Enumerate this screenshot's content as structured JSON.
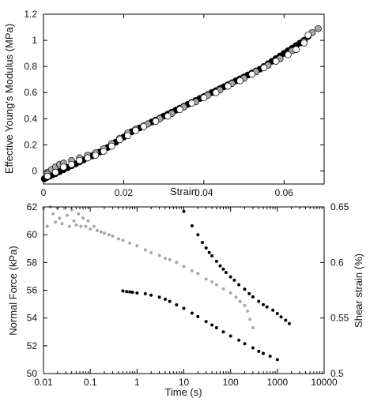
{
  "chart_data": [
    {
      "type": "scatter",
      "xlabel": "Strain",
      "ylabel": "Effective Young's Modulus (MPa)",
      "xlim": [
        0,
        0.07
      ],
      "ylim": [
        -0.1,
        1.2
      ],
      "xticks": [
        0,
        0.02,
        0.04,
        0.06
      ],
      "xtick_labels": [
        "0",
        "0.02",
        "0.04",
        "0.06"
      ],
      "yticks": [
        0,
        0.2,
        0.4,
        0.6,
        0.8,
        1,
        1.2
      ],
      "ytick_labels": [
        "0",
        "0.2",
        "0.4",
        "0.6",
        "0.8",
        "1",
        "1.2"
      ],
      "grid": false,
      "series": [
        {
          "color": "#000000",
          "marker": "filled-circle",
          "points": [
            [
              0.0002,
              -0.06
            ],
            [
              0.0008,
              -0.05
            ],
            [
              0.0015,
              -0.04
            ],
            [
              0.0022,
              -0.03
            ],
            [
              0.003,
              -0.02
            ],
            [
              0.004,
              -0.005
            ],
            [
              0.005,
              0.01
            ],
            [
              0.006,
              0.025
            ],
            [
              0.007,
              0.04
            ],
            [
              0.008,
              0.055
            ],
            [
              0.009,
              0.07
            ],
            [
              0.01,
              0.085
            ],
            [
              0.011,
              0.1
            ],
            [
              0.012,
              0.115
            ],
            [
              0.013,
              0.13
            ],
            [
              0.014,
              0.145
            ],
            [
              0.015,
              0.16
            ],
            [
              0.016,
              0.18
            ],
            [
              0.017,
              0.2
            ],
            [
              0.018,
              0.22
            ],
            [
              0.019,
              0.24
            ],
            [
              0.02,
              0.26
            ],
            [
              0.021,
              0.28
            ],
            [
              0.022,
              0.3
            ],
            [
              0.023,
              0.315
            ],
            [
              0.024,
              0.33
            ],
            [
              0.025,
              0.345
            ],
            [
              0.026,
              0.36
            ],
            [
              0.027,
              0.375
            ],
            [
              0.028,
              0.39
            ],
            [
              0.029,
              0.405
            ],
            [
              0.03,
              0.42
            ],
            [
              0.031,
              0.435
            ],
            [
              0.032,
              0.45
            ],
            [
              0.033,
              0.465
            ],
            [
              0.034,
              0.48
            ],
            [
              0.035,
              0.495
            ],
            [
              0.036,
              0.51
            ],
            [
              0.037,
              0.525
            ],
            [
              0.038,
              0.54
            ],
            [
              0.039,
              0.555
            ],
            [
              0.04,
              0.57
            ],
            [
              0.041,
              0.585
            ],
            [
              0.042,
              0.6
            ],
            [
              0.043,
              0.615
            ],
            [
              0.044,
              0.63
            ],
            [
              0.045,
              0.645
            ],
            [
              0.046,
              0.66
            ],
            [
              0.047,
              0.675
            ],
            [
              0.048,
              0.69
            ],
            [
              0.049,
              0.705
            ],
            [
              0.05,
              0.72
            ],
            [
              0.051,
              0.735
            ],
            [
              0.052,
              0.75
            ],
            [
              0.053,
              0.765
            ],
            [
              0.054,
              0.78
            ],
            [
              0.055,
              0.8
            ],
            [
              0.056,
              0.82
            ],
            [
              0.057,
              0.84
            ],
            [
              0.058,
              0.86
            ],
            [
              0.059,
              0.88
            ],
            [
              0.06,
              0.9
            ],
            [
              0.061,
              0.92
            ],
            [
              0.062,
              0.94
            ],
            [
              0.063,
              0.96
            ],
            [
              0.064,
              0.98
            ],
            [
              0.065,
              1.0
            ],
            [
              0.066,
              1.03
            ]
          ]
        },
        {
          "color": "#a8a8a8",
          "marker": "open-circle",
          "points": [
            [
              0.001,
              -0.01
            ],
            [
              0.002,
              0.01
            ],
            [
              0.003,
              0.03
            ],
            [
              0.004,
              0.05
            ],
            [
              0.005,
              0.06
            ],
            [
              0.007,
              0.08
            ],
            [
              0.009,
              0.1
            ],
            [
              0.011,
              0.12
            ],
            [
              0.013,
              0.14
            ],
            [
              0.015,
              0.17
            ],
            [
              0.017,
              0.21
            ],
            [
              0.019,
              0.25
            ],
            [
              0.021,
              0.29
            ],
            [
              0.023,
              0.32
            ],
            [
              0.026,
              0.36
            ],
            [
              0.029,
              0.4
            ],
            [
              0.032,
              0.44
            ],
            [
              0.035,
              0.49
            ],
            [
              0.038,
              0.53
            ],
            [
              0.041,
              0.58
            ],
            [
              0.044,
              0.62
            ],
            [
              0.047,
              0.67
            ],
            [
              0.05,
              0.71
            ],
            [
              0.053,
              0.76
            ],
            [
              0.056,
              0.81
            ],
            [
              0.059,
              0.86
            ],
            [
              0.062,
              0.92
            ],
            [
              0.065,
              0.99
            ],
            [
              0.067,
              1.06
            ],
            [
              0.0685,
              1.09
            ]
          ]
        },
        {
          "color": "#ffffff",
          "marker": "open-circle",
          "points": [
            [
              0.001,
              -0.04
            ],
            [
              0.003,
              -0.01
            ],
            [
              0.005,
              0.03
            ],
            [
              0.007,
              0.05
            ],
            [
              0.009,
              0.08
            ],
            [
              0.011,
              0.1
            ],
            [
              0.013,
              0.12
            ],
            [
              0.015,
              0.15
            ],
            [
              0.017,
              0.19
            ],
            [
              0.019,
              0.24
            ],
            [
              0.021,
              0.27
            ],
            [
              0.023,
              0.31
            ],
            [
              0.025,
              0.34
            ],
            [
              0.028,
              0.38
            ],
            [
              0.031,
              0.42
            ],
            [
              0.034,
              0.47
            ],
            [
              0.037,
              0.52
            ],
            [
              0.04,
              0.56
            ],
            [
              0.043,
              0.6
            ],
            [
              0.046,
              0.65
            ],
            [
              0.049,
              0.69
            ],
            [
              0.052,
              0.74
            ],
            [
              0.055,
              0.79
            ],
            [
              0.058,
              0.84
            ],
            [
              0.061,
              0.89
            ],
            [
              0.063,
              0.93
            ],
            [
              0.065,
              0.98
            ],
            [
              0.066,
              1.04
            ]
          ]
        }
      ]
    },
    {
      "type": "scatter",
      "xlabel": "Time (s)",
      "ylabel": "Normal Force (kPa)",
      "ylabel_right": "Shear strain (%)",
      "xscale": "log",
      "xlim": [
        0.01,
        10000
      ],
      "ylim": [
        50,
        62
      ],
      "ylim_right": [
        0.5,
        0.65
      ],
      "xticks": [
        0.01,
        0.1,
        1,
        10,
        100,
        1000,
        10000
      ],
      "xtick_labels": [
        "0.01",
        "0.1",
        "1",
        "10",
        "100",
        "1000",
        "10000"
      ],
      "yticks": [
        50,
        52,
        54,
        56,
        58,
        60,
        62
      ],
      "ytick_labels": [
        "50",
        "52",
        "54",
        "56",
        "58",
        "60",
        "62"
      ],
      "yticks_right": [
        0.5,
        0.55,
        0.6,
        0.65
      ],
      "ytick_labels_right": [
        "0.5",
        "0.55",
        "0.6",
        "0.65"
      ],
      "grid": false,
      "series": [
        {
          "axis": "left",
          "color": "#a8a8a8",
          "marker": "small-dot",
          "points": [
            [
              0.01,
              61.9
            ],
            [
              0.012,
              60.6
            ],
            [
              0.014,
              62.0
            ],
            [
              0.016,
              61.5
            ],
            [
              0.018,
              60.9
            ],
            [
              0.02,
              61.9
            ],
            [
              0.022,
              61.2
            ],
            [
              0.025,
              60.8
            ],
            [
              0.028,
              61.9
            ],
            [
              0.032,
              61.4
            ],
            [
              0.036,
              60.6
            ],
            [
              0.04,
              61.8
            ],
            [
              0.045,
              61.0
            ],
            [
              0.05,
              60.7
            ],
            [
              0.056,
              61.5
            ],
            [
              0.063,
              60.6
            ],
            [
              0.07,
              61.2
            ],
            [
              0.08,
              60.6
            ],
            [
              0.09,
              61.0
            ],
            [
              0.1,
              60.4
            ],
            [
              0.12,
              60.6
            ],
            [
              0.14,
              60.3
            ],
            [
              0.17,
              60.2
            ],
            [
              0.2,
              60.1
            ],
            [
              0.25,
              60.0
            ],
            [
              0.3,
              59.9
            ],
            [
              0.4,
              59.7
            ],
            [
              0.5,
              59.6
            ],
            [
              0.7,
              59.4
            ],
            [
              1,
              59.2
            ],
            [
              1.5,
              58.9
            ],
            [
              2,
              58.7
            ],
            [
              3,
              58.5
            ],
            [
              4,
              58.3
            ],
            [
              5,
              58.2
            ],
            [
              7,
              58.0
            ],
            [
              10,
              57.7
            ],
            [
              15,
              57.4
            ],
            [
              20,
              57.2
            ],
            [
              30,
              56.8
            ],
            [
              40,
              56.6
            ],
            [
              50,
              56.4
            ],
            [
              70,
              56.1
            ],
            [
              100,
              55.8
            ],
            [
              130,
              55.5
            ],
            [
              160,
              55.2
            ],
            [
              200,
              54.9
            ],
            [
              230,
              54.5
            ],
            [
              260,
              53.9
            ],
            [
              300,
              53.3
            ]
          ]
        },
        {
          "axis": "left",
          "color": "#000000",
          "marker": "small-dot",
          "points": [
            [
              0.5,
              55.95
            ],
            [
              0.6,
              55.9
            ],
            [
              0.7,
              55.88
            ],
            [
              0.8,
              55.85
            ],
            [
              1,
              55.8
            ],
            [
              1.5,
              55.75
            ],
            [
              2,
              55.65
            ],
            [
              3,
              55.5
            ],
            [
              4,
              55.35
            ],
            [
              5,
              55.2
            ],
            [
              7,
              54.95
            ],
            [
              10,
              54.7
            ],
            [
              15,
              54.35
            ],
            [
              20,
              54.1
            ],
            [
              30,
              53.75
            ],
            [
              40,
              53.5
            ],
            [
              50,
              53.3
            ],
            [
              70,
              53.0
            ],
            [
              100,
              52.7
            ],
            [
              150,
              52.4
            ],
            [
              200,
              52.15
            ],
            [
              300,
              51.85
            ],
            [
              400,
              51.6
            ],
            [
              500,
              51.45
            ],
            [
              700,
              51.25
            ],
            [
              1000,
              51.0
            ]
          ]
        },
        {
          "axis": "right",
          "color": "#000000",
          "marker": "small-dot",
          "points": [
            [
              10,
              0.646
            ],
            [
              15,
              0.633
            ],
            [
              20,
              0.625
            ],
            [
              25,
              0.618
            ],
            [
              30,
              0.613
            ],
            [
              35,
              0.609
            ],
            [
              40,
              0.606
            ],
            [
              50,
              0.601
            ],
            [
              60,
              0.597
            ],
            [
              70,
              0.594
            ],
            [
              80,
              0.591
            ],
            [
              100,
              0.587
            ],
            [
              120,
              0.584
            ],
            [
              150,
              0.58
            ],
            [
              200,
              0.576
            ],
            [
              250,
              0.572
            ],
            [
              300,
              0.569
            ],
            [
              400,
              0.565
            ],
            [
              500,
              0.562
            ],
            [
              600,
              0.56
            ],
            [
              800,
              0.557
            ],
            [
              1000,
              0.554
            ],
            [
              1200,
              0.551
            ],
            [
              1500,
              0.548
            ],
            [
              1800,
              0.545
            ]
          ]
        }
      ]
    }
  ]
}
